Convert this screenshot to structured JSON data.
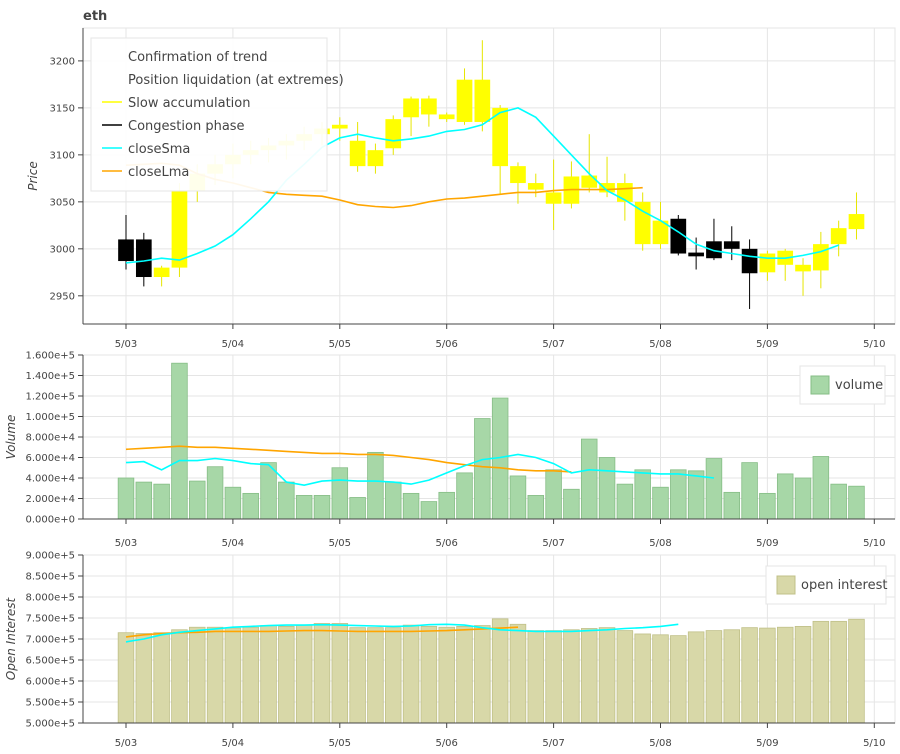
{
  "chart_data": [
    {
      "type": "candlestick",
      "title": "eth",
      "ylabel": "Price",
      "ylim": [
        2920,
        3235
      ],
      "yticks": [
        2950,
        3000,
        3050,
        3100,
        3150,
        3200
      ],
      "xticks": [
        "5/03",
        "5/04",
        "5/05",
        "5/06",
        "5/07",
        "5/08",
        "5/09",
        "5/10"
      ],
      "colors": {
        "up": "#ffff00",
        "down": "#000000",
        "closeSma": "#00ffff",
        "closeLma": "#ffa500",
        "grid": "#e5e5e5"
      },
      "legend": {
        "position": "top-left",
        "items": [
          {
            "label": "Confirmation of trend",
            "color": ""
          },
          {
            "label": "Position liquidation (at extremes)",
            "color": ""
          },
          {
            "label": "Slow accumulation",
            "color": "#ffff00"
          },
          {
            "label": "Congestion phase",
            "color": "#000000"
          },
          {
            "label": "closeSma",
            "color": "#00ffff"
          },
          {
            "label": "closeLma",
            "color": "#ffa500"
          }
        ]
      },
      "candles": [
        {
          "t": 0,
          "open": 3010,
          "high": 3036,
          "low": 2978,
          "close": 2987,
          "color": "down"
        },
        {
          "t": 1,
          "open": 3010,
          "high": 3017,
          "low": 2960,
          "close": 2970,
          "color": "down"
        },
        {
          "t": 2,
          "open": 2970,
          "high": 2982,
          "low": 2960,
          "close": 2980,
          "color": "up"
        },
        {
          "t": 3,
          "open": 2980,
          "high": 3070,
          "low": 2970,
          "close": 3062,
          "color": "up"
        },
        {
          "t": 4,
          "open": 3062,
          "high": 3090,
          "low": 3050,
          "close": 3080,
          "color": "up"
        },
        {
          "t": 5,
          "open": 3080,
          "high": 3100,
          "low": 3068,
          "close": 3090,
          "color": "up"
        },
        {
          "t": 6,
          "open": 3090,
          "high": 3112,
          "low": 3075,
          "close": 3100,
          "color": "up"
        },
        {
          "t": 7,
          "open": 3100,
          "high": 3115,
          "low": 3090,
          "close": 3105,
          "color": "up"
        },
        {
          "t": 8,
          "open": 3105,
          "high": 3118,
          "low": 3092,
          "close": 3110,
          "color": "up"
        },
        {
          "t": 9,
          "open": 3110,
          "high": 3122,
          "low": 3095,
          "close": 3115,
          "color": "up"
        },
        {
          "t": 10,
          "open": 3115,
          "high": 3130,
          "low": 3105,
          "close": 3122,
          "color": "up"
        },
        {
          "t": 11,
          "open": 3122,
          "high": 3135,
          "low": 3110,
          "close": 3128,
          "color": "up"
        },
        {
          "t": 12,
          "open": 3128,
          "high": 3140,
          "low": 3115,
          "close": 3132,
          "color": "up"
        },
        {
          "t": 13,
          "open": 3115,
          "high": 3135,
          "low": 3082,
          "close": 3088,
          "color": "up"
        },
        {
          "t": 14,
          "open": 3105,
          "high": 3112,
          "low": 3080,
          "close": 3088,
          "color": "up"
        },
        {
          "t": 15,
          "open": 3107,
          "high": 3142,
          "low": 3100,
          "close": 3138,
          "color": "up"
        },
        {
          "t": 16,
          "open": 3140,
          "high": 3162,
          "low": 3120,
          "close": 3160,
          "color": "up"
        },
        {
          "t": 17,
          "open": 3143,
          "high": 3163,
          "low": 3130,
          "close": 3160,
          "color": "up"
        },
        {
          "t": 18,
          "open": 3138,
          "high": 3145,
          "low": 3135,
          "close": 3143,
          "color": "up"
        },
        {
          "t": 19,
          "open": 3135,
          "high": 3192,
          "low": 3132,
          "close": 3180,
          "color": "up"
        },
        {
          "t": 20,
          "open": 3135,
          "high": 3222,
          "low": 3125,
          "close": 3180,
          "color": "up"
        },
        {
          "t": 21,
          "open": 3150,
          "high": 3153,
          "low": 3058,
          "close": 3088,
          "color": "up"
        },
        {
          "t": 22,
          "open": 3088,
          "high": 3092,
          "low": 3048,
          "close": 3070,
          "color": "up"
        },
        {
          "t": 23,
          "open": 3063,
          "high": 3080,
          "low": 3055,
          "close": 3070,
          "color": "up"
        },
        {
          "t": 24,
          "open": 3060,
          "high": 3095,
          "low": 3020,
          "close": 3048,
          "color": "up"
        },
        {
          "t": 25,
          "open": 3048,
          "high": 3093,
          "low": 3043,
          "close": 3077,
          "color": "up"
        },
        {
          "t": 26,
          "open": 3065,
          "high": 3122,
          "low": 3060,
          "close": 3078,
          "color": "up"
        },
        {
          "t": 27,
          "open": 3060,
          "high": 3098,
          "low": 3055,
          "close": 3070,
          "color": "up"
        },
        {
          "t": 28,
          "open": 3050,
          "high": 3080,
          "low": 3030,
          "close": 3070,
          "color": "up"
        },
        {
          "t": 29,
          "open": 3050,
          "high": 3060,
          "low": 2998,
          "close": 3005,
          "color": "up"
        },
        {
          "t": 30,
          "open": 3030,
          "high": 3050,
          "low": 3000,
          "close": 3005,
          "color": "up"
        },
        {
          "t": 31,
          "open": 3032,
          "high": 3036,
          "low": 2993,
          "close": 2995,
          "color": "down"
        },
        {
          "t": 32,
          "open": 2996,
          "high": 3012,
          "low": 2978,
          "close": 2992,
          "color": "down"
        },
        {
          "t": 33,
          "open": 3008,
          "high": 3032,
          "low": 2988,
          "close": 2990,
          "color": "down"
        },
        {
          "t": 34,
          "open": 3008,
          "high": 3024,
          "low": 2988,
          "close": 3000,
          "color": "down"
        },
        {
          "t": 35,
          "open": 3000,
          "high": 3010,
          "low": 2936,
          "close": 2974,
          "color": "down"
        },
        {
          "t": 36,
          "open": 2975,
          "high": 2998,
          "low": 2966,
          "close": 2995,
          "color": "up"
        },
        {
          "t": 37,
          "open": 2983,
          "high": 3000,
          "low": 2966,
          "close": 2998,
          "color": "up"
        },
        {
          "t": 38,
          "open": 2976,
          "high": 2990,
          "low": 2950,
          "close": 2983,
          "color": "up"
        },
        {
          "t": 39,
          "open": 2977,
          "high": 3018,
          "low": 2958,
          "close": 3005,
          "color": "up"
        },
        {
          "t": 40,
          "open": 3005,
          "high": 3030,
          "low": 2992,
          "close": 3022,
          "color": "up"
        },
        {
          "t": 41,
          "open": 3021,
          "high": 3060,
          "low": 3010,
          "close": 3037,
          "color": "up"
        }
      ],
      "closeSma": [
        2985,
        2987,
        2990,
        2988,
        2995,
        3003,
        3015,
        3032,
        3050,
        3073,
        3090,
        3108,
        3118,
        3122,
        3118,
        3115,
        3117,
        3120,
        3125,
        3127,
        3132,
        3145,
        3150,
        3140,
        3120,
        3100,
        3080,
        3062,
        3052,
        3040,
        3030,
        3018,
        3005,
        2998,
        2995,
        2992,
        2990,
        2990,
        2993,
        2997,
        3004
      ],
      "closeLma": [
        3089,
        3090,
        3091,
        3089,
        3080,
        3074,
        3070,
        3065,
        3060,
        3058,
        3057,
        3056,
        3052,
        3047,
        3045,
        3044,
        3046,
        3050,
        3053,
        3054,
        3056,
        3058,
        3060,
        3060,
        3062,
        3063,
        3063,
        3063,
        3064,
        3065
      ]
    },
    {
      "type": "bar",
      "ylabel": "Volume",
      "ylim": [
        0,
        160000
      ],
      "yticks": [
        "0.000e+0",
        "2.000e+4",
        "4.000e+4",
        "6.000e+4",
        "8.000e+4",
        "1.000e+5",
        "1.200e+5",
        "1.400e+5",
        "1.600e+5"
      ],
      "xticks": [
        "5/03",
        "5/04",
        "5/05",
        "5/06",
        "5/07",
        "5/08",
        "5/09",
        "5/10"
      ],
      "colors": {
        "bar": "#a7d7a7",
        "barStroke": "#86bd86",
        "closeSma": "#00ffff",
        "closeLma": "#ffa500"
      },
      "legend": {
        "position": "top-right",
        "items": [
          {
            "label": "volume"
          }
        ]
      },
      "values": [
        40000,
        36000,
        34000,
        152000,
        37000,
        51000,
        31000,
        25000,
        55000,
        36000,
        23000,
        23000,
        50000,
        21000,
        65000,
        36000,
        25000,
        17000,
        26000,
        45000,
        98000,
        118000,
        42000,
        23000,
        48000,
        29000,
        78000,
        60000,
        34000,
        48000,
        31000,
        48000,
        47000,
        59000,
        26000,
        55000,
        25000,
        44000,
        40000,
        61000,
        34000,
        32000
      ],
      "closeSma": [
        55000,
        56000,
        48000,
        57000,
        57000,
        59000,
        57000,
        54000,
        53000,
        36000,
        33000,
        37000,
        38000,
        37000,
        37000,
        36000,
        34000,
        38000,
        45000,
        52000,
        58000,
        60000,
        63000,
        60000,
        54000,
        45000,
        48000,
        47000,
        46000,
        45000,
        44000,
        44000,
        42000,
        40000
      ],
      "closeLma": [
        68000,
        69000,
        70000,
        71000,
        70000,
        70000,
        69000,
        68000,
        67000,
        66000,
        65000,
        64000,
        64000,
        63000,
        63000,
        62000,
        60000,
        58000,
        55000,
        53000,
        51000,
        50000,
        48000,
        47000,
        47000,
        46000
      ]
    },
    {
      "type": "bar",
      "ylabel": "Open Interest",
      "ylim": [
        500000,
        900000
      ],
      "yticks": [
        "5.000e+5",
        "5.500e+5",
        "6.000e+5",
        "6.500e+5",
        "7.000e+5",
        "7.500e+5",
        "8.000e+5",
        "8.500e+5",
        "9.000e+5"
      ],
      "xticks": [
        "5/03",
        "5/04",
        "5/05",
        "5/06",
        "5/07",
        "5/08",
        "5/09",
        "5/10"
      ],
      "colors": {
        "bar": "#d8d8a8",
        "barStroke": "#c0c088",
        "closeSma": "#00ffff",
        "closeLma": "#ffa500"
      },
      "legend": {
        "position": "top-right",
        "items": [
          {
            "label": "open interest"
          }
        ]
      },
      "values": [
        715000,
        713000,
        715000,
        722000,
        728000,
        728000,
        726000,
        728000,
        732000,
        730000,
        733000,
        737000,
        737000,
        727000,
        727000,
        727000,
        733000,
        730000,
        728000,
        730000,
        732000,
        748000,
        735000,
        720000,
        720000,
        722000,
        725000,
        727000,
        720000,
        712000,
        710000,
        708000,
        717000,
        720000,
        722000,
        727000,
        726000,
        728000,
        730000,
        742000,
        742000,
        747000
      ],
      "closeSma": [
        693000,
        700000,
        710000,
        716000,
        720000,
        724000,
        728000,
        730000,
        732000,
        733000,
        733000,
        734000,
        733000,
        732000,
        731000,
        730000,
        731000,
        734000,
        735000,
        733000,
        727000,
        722000,
        720000,
        718000,
        718000,
        718000,
        720000,
        722000,
        725000,
        727000,
        730000,
        735000
      ],
      "closeLma": [
        705000,
        710000,
        713000,
        715000,
        716000,
        718000,
        718000,
        718000,
        718000,
        719000,
        720000,
        720000,
        719000,
        718000,
        718000,
        718000,
        718000,
        719000,
        720000,
        722000,
        724000,
        726000,
        728000
      ]
    }
  ]
}
